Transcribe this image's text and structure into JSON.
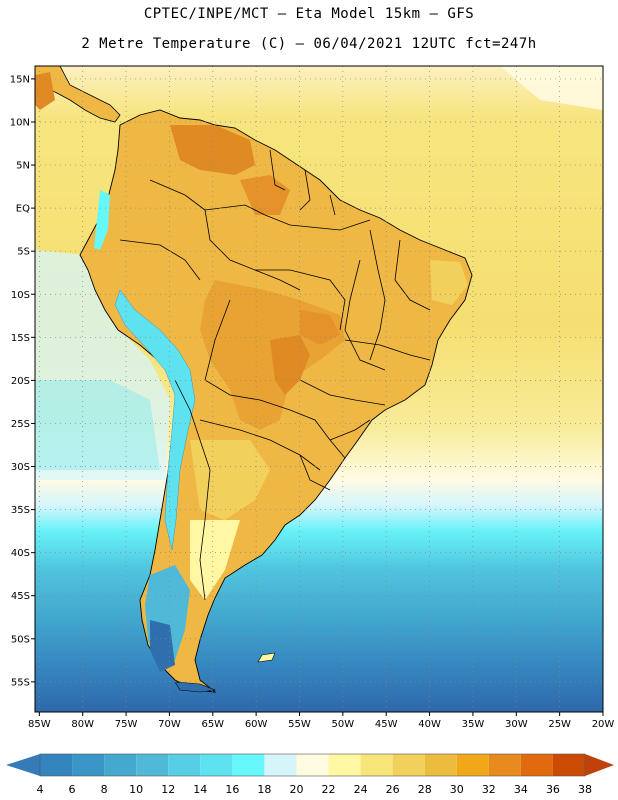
{
  "title_line1": "CPTEC/INPE/MCT –  Eta Model 15km – GFS",
  "title_line2": "2 Metre Temperature (C) – 06/04/2021 12UTC fct=247h",
  "lat_labels": [
    "15N",
    "10N",
    "5N",
    "EQ",
    "5S",
    "10S",
    "15S",
    "20S",
    "25S",
    "30S",
    "35S",
    "40S",
    "45S",
    "50S",
    "55S"
  ],
  "lat_values": [
    15,
    10,
    5,
    0,
    -5,
    -10,
    -15,
    -20,
    -25,
    -30,
    -35,
    -40,
    -45,
    -50,
    -55
  ],
  "lon_labels": [
    "85W",
    "80W",
    "75W",
    "70W",
    "65W",
    "60W",
    "55W",
    "50W",
    "45W",
    "40W",
    "35W",
    "30W",
    "25W",
    "20W"
  ],
  "lon_values": [
    -85,
    -80,
    -75,
    -70,
    -65,
    -60,
    -55,
    -50,
    -45,
    -40,
    -35,
    -30,
    -25,
    -20
  ],
  "map_extent": {
    "lon_min": -85.5,
    "lon_max": -20,
    "lat_min": -58.5,
    "lat_max": 16.5
  },
  "colorbar": {
    "labels": [
      "4",
      "6",
      "8",
      "10",
      "12",
      "14",
      "16",
      "18",
      "20",
      "22",
      "24",
      "26",
      "28",
      "30",
      "32",
      "34",
      "36",
      "38"
    ],
    "colors": [
      "#2f6fae",
      "#3384bd",
      "#3a96c6",
      "#45a8cf",
      "#50b9d8",
      "#56cfe6",
      "#5fe2f0",
      "#66f7fb",
      "#d6f5fb",
      "#fffbe0",
      "#fff7a3",
      "#f8e57a",
      "#f2d05c",
      "#ecbc3f",
      "#f0a818",
      "#e98a1e",
      "#e26a0e",
      "#cb4a04"
    ],
    "low_color": "#357bb8",
    "high_color": "#c0420a"
  },
  "colors": {
    "ocean_warm": "#f8e57a",
    "ocean_mid": "#fffbe0",
    "land_hot": "#e9a332",
    "land_warm": "#efb845",
    "land_veryhot": "#e08a24",
    "andes": "#66f7fb",
    "border": "#000000"
  }
}
